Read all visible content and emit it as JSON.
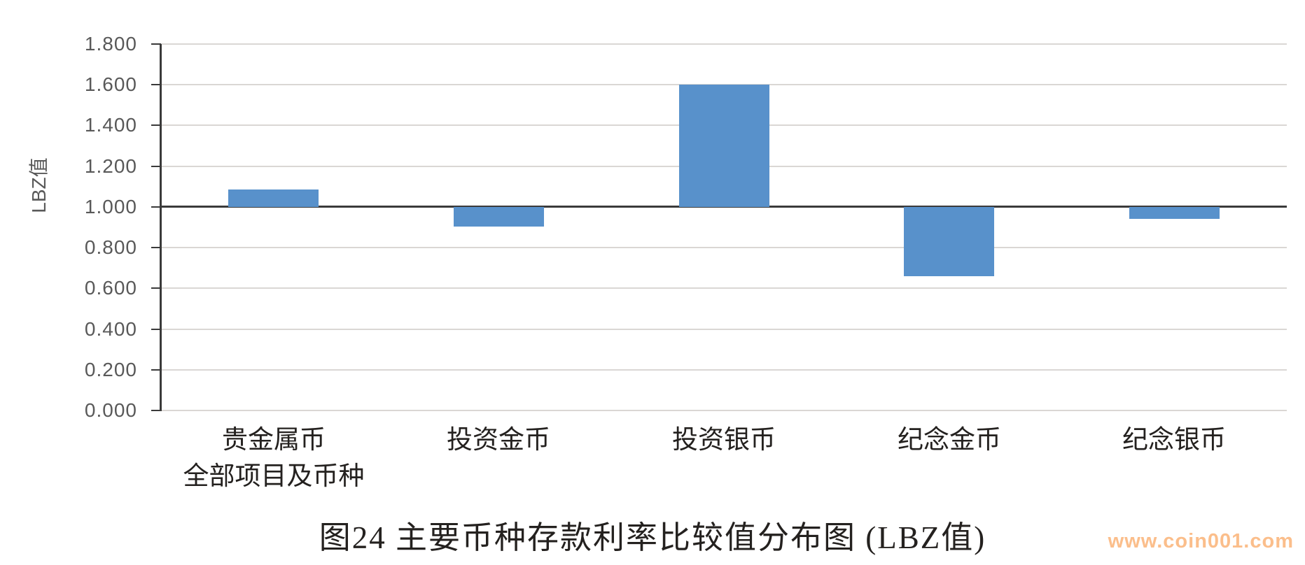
{
  "chart_data": {
    "type": "bar",
    "title": "图24 主要币种存款利率比较值分布图 (LBZ值)",
    "ylabel": "LBZ值",
    "xlabel": "",
    "categories": [
      {
        "lines": [
          "贵金属币",
          "全部项目及币种"
        ]
      },
      {
        "lines": [
          "投资金币"
        ]
      },
      {
        "lines": [
          "投资银币"
        ]
      },
      {
        "lines": [
          "纪念金币"
        ]
      },
      {
        "lines": [
          "纪念银币"
        ]
      }
    ],
    "values": [
      1.085,
      0.905,
      1.6,
      0.661,
      0.94
    ],
    "baseline": 1.0,
    "ylim": [
      0,
      1.8
    ],
    "ytick_step": 0.2,
    "ytick_labels": [
      "0.000",
      "0.200",
      "0.400",
      "0.600",
      "0.800",
      "1.000",
      "1.200",
      "1.400",
      "1.600",
      "1.800"
    ],
    "grid": true,
    "legend_position": "none",
    "colors": {
      "bar": "#5891CB",
      "axis": "#3a3a3a",
      "gridline": "#dad7d4",
      "tick_label": "#595959",
      "text": "#24211f"
    }
  },
  "watermark": {
    "text": "www.coin001.com",
    "color": "#FBBE8B"
  }
}
